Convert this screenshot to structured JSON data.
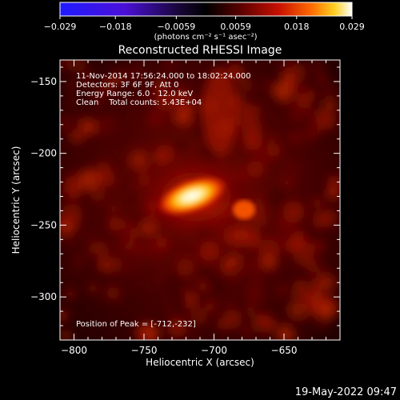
{
  "chart_data": {
    "type": "heatmap",
    "title": "Reconstructed RHESSI Image",
    "xlabel": "Heliocentric X (arcsec)",
    "ylabel": "Heliocentric Y (arcsec)",
    "xlim": [
      -810,
      -610
    ],
    "ylim": [
      -330,
      -135
    ],
    "x_ticks": [
      -800,
      -750,
      -700,
      -650
    ],
    "y_ticks": [
      -150,
      -200,
      -250,
      -300
    ],
    "colorbar": {
      "range": [
        -0.029,
        0.029
      ],
      "ticks": [
        "-0.029",
        "-0.018",
        "-0.0059",
        "0.0059",
        "0.018",
        "0.029"
      ],
      "units_label": "(photons cm⁻² s⁻¹ asec⁻²)"
    },
    "peak": {
      "x": -712,
      "y": -232
    },
    "colormap": {
      "negative": "#2a00ff",
      "zero": "#000000",
      "positive": "#ffffff"
    }
  },
  "annotations": {
    "line1": "11-Nov-2014 17:56:24.000 to 18:02:24.000",
    "line2": "Detectors: 3F 6F 9F, Att 0",
    "line3": "Energy Range: 6.0 - 12.0 keV",
    "line4": "Clean    Total counts: 5.43E+04",
    "peak_label": "Position of Peak = [-712,-232]"
  },
  "footer": {
    "timestamp": "19-May-2022 09:47"
  }
}
